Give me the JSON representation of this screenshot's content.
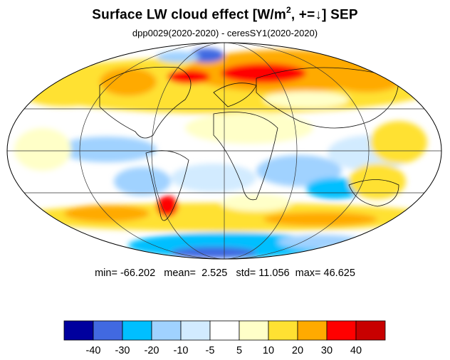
{
  "title": {
    "main": "Surface LW cloud effect [W/m",
    "sup": "2",
    "rest": ", +=↓]  SEP"
  },
  "subtitle": "dpp0029(2020-2020) - ceresSY1(2020-2020)",
  "stats": {
    "min_label": "min=",
    "min": "-66.202",
    "mean_label": "mean=",
    "mean": "2.525",
    "std_label": "std=",
    "std": "11.056",
    "max_label": "max=",
    "max": "46.625"
  },
  "colorbar": {
    "colors": [
      "#00009e",
      "#4169e1",
      "#00bfff",
      "#a0d2ff",
      "#d2ebff",
      "#ffffff",
      "#ffffc8",
      "#ffe132",
      "#ffaa00",
      "#ff0000",
      "#c80000"
    ],
    "labels": [
      "-40",
      "-30",
      "-20",
      "-10",
      "-5",
      "5",
      "10",
      "20",
      "30",
      "40"
    ]
  }
}
